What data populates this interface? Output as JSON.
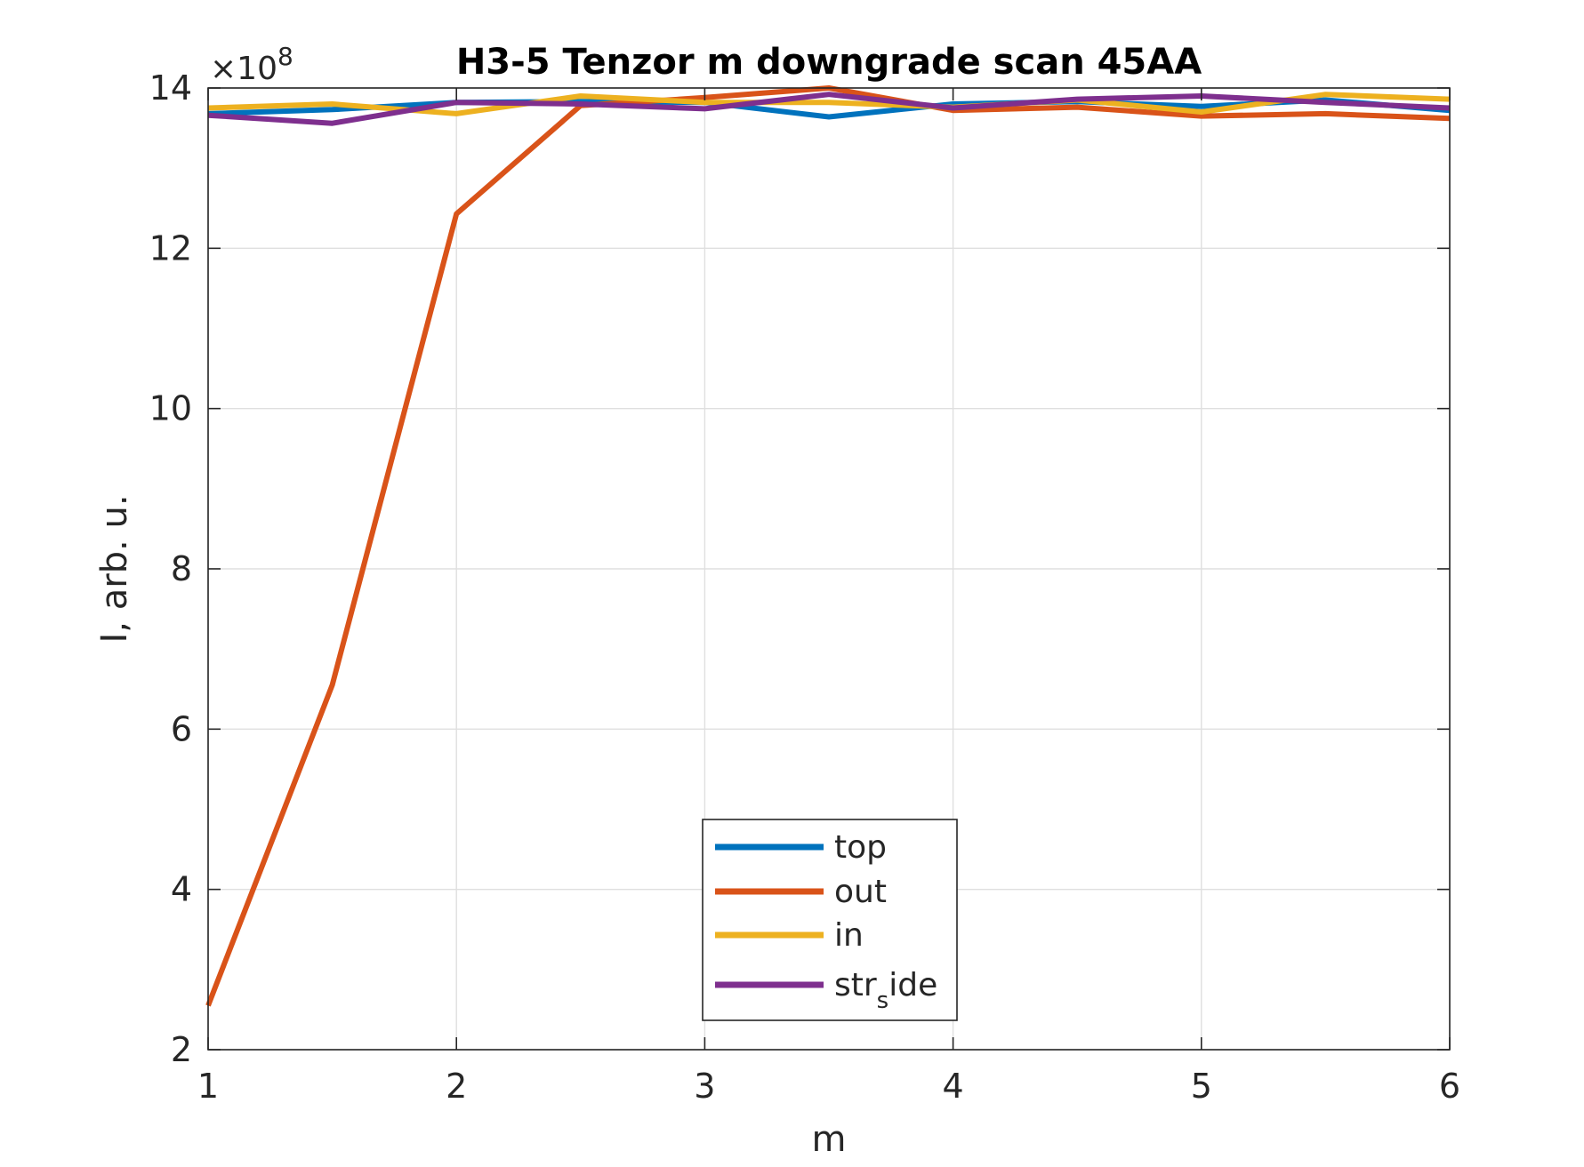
{
  "chart_data": {
    "type": "line",
    "title": "H3-5 Tenzor m downgrade scan 45AA",
    "xlabel": "m",
    "ylabel": "I, arb. u.",
    "y_exponent_prefix": "×10",
    "y_exponent_power": "8",
    "xlim": [
      1,
      6
    ],
    "ylim": [
      2,
      14
    ],
    "xticks": [
      "1",
      "2",
      "3",
      "4",
      "5",
      "6"
    ],
    "yticks": [
      "2",
      "4",
      "6",
      "8",
      "10",
      "12",
      "14"
    ],
    "grid": true,
    "legend_position": "bottom-center",
    "x": [
      1,
      1.5,
      2,
      2.5,
      3,
      3.5,
      4,
      4.5,
      5,
      5.5,
      6
    ],
    "series": [
      {
        "name": "top",
        "color": "#0072BD",
        "values": [
          13.68,
          13.73,
          13.82,
          13.83,
          13.82,
          13.64,
          13.8,
          13.83,
          13.77,
          13.85,
          13.72
        ]
      },
      {
        "name": "out",
        "color": "#D95319",
        "values": [
          2.55,
          6.55,
          12.43,
          13.78,
          13.88,
          14.0,
          13.72,
          13.76,
          13.65,
          13.68,
          13.62
        ]
      },
      {
        "name": "in",
        "color": "#EDB120",
        "values": [
          13.75,
          13.8,
          13.68,
          13.9,
          13.82,
          13.82,
          13.76,
          13.85,
          13.7,
          13.92,
          13.86
        ]
      },
      {
        "name": "str",
        "name_subscript": "s",
        "name_suffix": "ide",
        "color": "#7E2F8E",
        "values": [
          13.66,
          13.56,
          13.82,
          13.8,
          13.74,
          13.92,
          13.75,
          13.86,
          13.9,
          13.82,
          13.75
        ]
      }
    ]
  }
}
